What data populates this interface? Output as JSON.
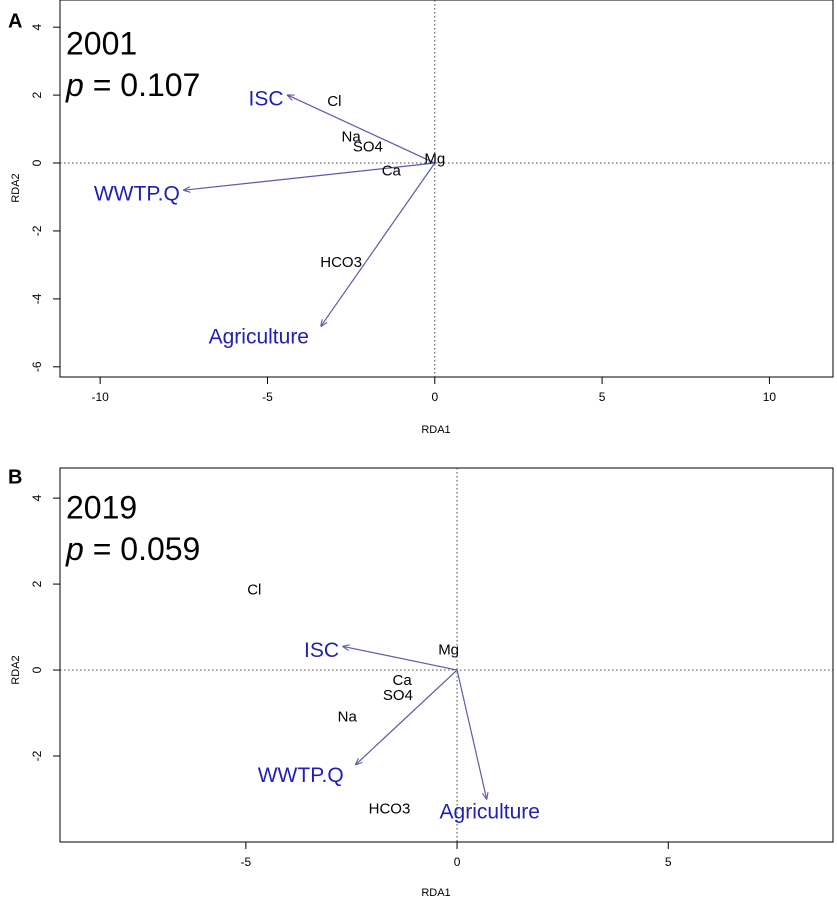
{
  "chart_data": [
    {
      "type": "scatter",
      "panel_label": "A",
      "year": "2001",
      "p_label": "p",
      "p_value": "= 0.107",
      "xlabel": "RDA1",
      "ylabel": "RDA2",
      "xlim": [
        -11.2,
        11.9
      ],
      "ylim": [
        -6.3,
        4.8
      ],
      "xticks": [
        -10,
        -5,
        0,
        5,
        10
      ],
      "xtick_labels": [
        "-10",
        "-5",
        "0",
        "5",
        "10"
      ],
      "yticks": [
        -6,
        -4,
        -2,
        0,
        2,
        4
      ],
      "ytick_labels": [
        "-6",
        "-4",
        "-2",
        "0",
        "2",
        "4"
      ],
      "reference_lines": {
        "x": 0,
        "y": 0
      },
      "arrows": [
        {
          "label": "ISC",
          "x": -4.4,
          "y": 2.0
        },
        {
          "label": "WWTP.Q",
          "x": -7.5,
          "y": -0.8
        },
        {
          "label": "Agriculture",
          "x": -3.4,
          "y": -4.8
        }
      ],
      "points": [
        {
          "label": "Cl",
          "x": -3.0,
          "y": 1.8
        },
        {
          "label": "Na",
          "x": -2.5,
          "y": 0.75
        },
        {
          "label": "SO4",
          "x": -2.0,
          "y": 0.45
        },
        {
          "label": "Mg",
          "x": 0.0,
          "y": 0.1
        },
        {
          "label": "Ca",
          "x": -1.3,
          "y": -0.25
        },
        {
          "label": "HCO3",
          "x": -2.8,
          "y": -2.95
        }
      ],
      "colors": {
        "arrow": "#5b5ba8",
        "arrow_label": "#1f1fb4",
        "text": "#000000"
      }
    },
    {
      "type": "scatter",
      "panel_label": "B",
      "year": "2019",
      "p_label": "p",
      "p_value": "= 0.059",
      "xlabel": "RDA1",
      "ylabel": "RDA2",
      "xlim": [
        -9.4,
        8.9
      ],
      "ylim": [
        -4.0,
        4.7
      ],
      "xticks": [
        -5,
        0,
        5
      ],
      "xtick_labels": [
        "-5",
        "0",
        "5"
      ],
      "yticks": [
        -2,
        0,
        2,
        4
      ],
      "ytick_labels": [
        "-2",
        "0",
        "2",
        "4"
      ],
      "reference_lines": {
        "x": 0,
        "y": 0
      },
      "arrows": [
        {
          "label": "ISC",
          "x": -2.7,
          "y": 0.55
        },
        {
          "label": "WWTP.Q",
          "x": -2.4,
          "y": -2.2
        },
        {
          "label": "Agriculture",
          "x": 0.7,
          "y": -3.0
        }
      ],
      "points": [
        {
          "label": "Cl",
          "x": -4.8,
          "y": 1.85
        },
        {
          "label": "Mg",
          "x": -0.2,
          "y": 0.45
        },
        {
          "label": "Ca",
          "x": -1.3,
          "y": -0.25
        },
        {
          "label": "SO4",
          "x": -1.4,
          "y": -0.6
        },
        {
          "label": "Na",
          "x": -2.6,
          "y": -1.1
        },
        {
          "label": "HCO3",
          "x": -1.6,
          "y": -3.25
        }
      ],
      "colors": {
        "arrow": "#5b5ba8",
        "arrow_label": "#1f1fb4",
        "text": "#000000"
      }
    }
  ]
}
